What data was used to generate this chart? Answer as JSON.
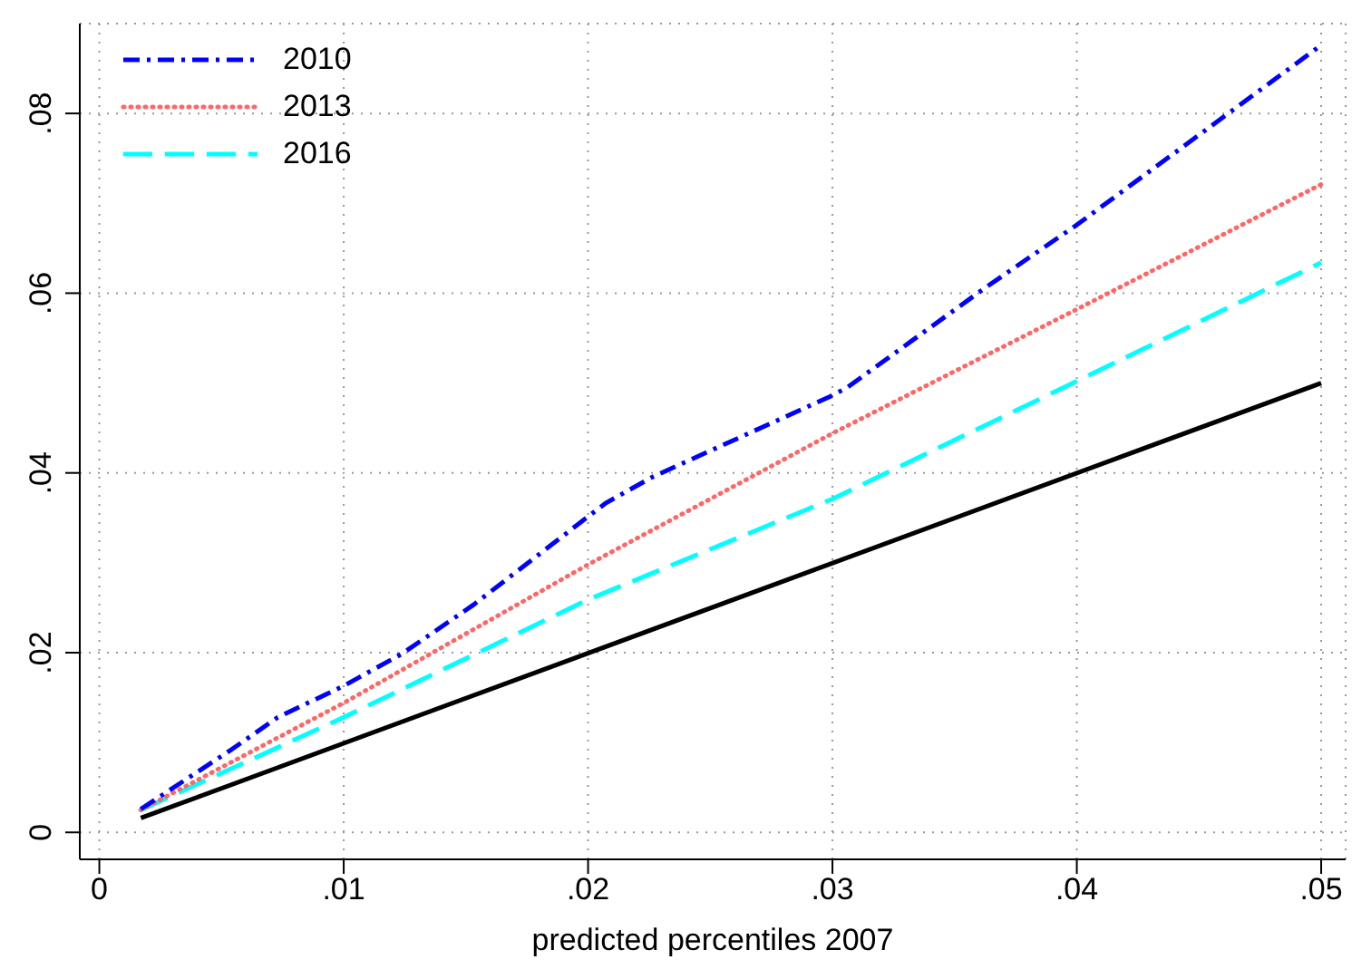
{
  "chart_data": {
    "type": "line",
    "xlabel": "predicted percentiles 2007",
    "xlim": [
      -0.0008,
      0.051
    ],
    "ylim": [
      -0.003,
      0.09
    ],
    "xticks": [
      0,
      {
        "value": 0.01,
        "label": ".01"
      },
      {
        "value": 0.02,
        "label": ".02"
      },
      {
        "value": 0.03,
        "label": ".03"
      },
      {
        "value": 0.04,
        "label": ".04"
      },
      {
        "value": 0.05,
        "label": ".05"
      }
    ],
    "yticks": [
      0,
      {
        "value": 0.02,
        "label": ".02"
      },
      {
        "value": 0.04,
        "label": ".04"
      },
      {
        "value": 0.06,
        "label": ".06"
      },
      {
        "value": 0.08,
        "label": ".08"
      }
    ],
    "grid": true,
    "legend": "top left",
    "marker": "none",
    "series": [
      {
        "name": "2010",
        "color": "#0000ff",
        "line_style": "dashdot",
        "x": [
          0.0017,
          0.0054,
          0.0073,
          0.01,
          0.0124,
          0.0153,
          0.0207,
          0.0226,
          0.0299,
          0.0306,
          0.0362,
          0.04,
          0.05
        ],
        "values": [
          0.0026,
          0.0092,
          0.0128,
          0.0163,
          0.0199,
          0.0253,
          0.0366,
          0.0395,
          0.0485,
          0.0495,
          0.0605,
          0.0676,
          0.0876
        ]
      },
      {
        "name": "2013",
        "color": "#ff6666",
        "line_style": "dotted",
        "x": [
          0.0017,
          0.01,
          0.02,
          0.03,
          0.04,
          0.05
        ],
        "values": [
          0.0025,
          0.0144,
          0.0298,
          0.0444,
          0.0582,
          0.0721
        ]
      },
      {
        "name": "2016",
        "color": "#00ffff",
        "line_style": "dashed",
        "x": [
          0.0017,
          0.01,
          0.02,
          0.03,
          0.04,
          0.05
        ],
        "values": [
          0.0025,
          0.0128,
          0.0259,
          0.0371,
          0.0502,
          0.0634
        ]
      },
      {
        "color": "#000000",
        "line_style": "solid",
        "x": [
          0.0017,
          0.05
        ],
        "values": [
          0.0016,
          0.05
        ]
      }
    ]
  }
}
